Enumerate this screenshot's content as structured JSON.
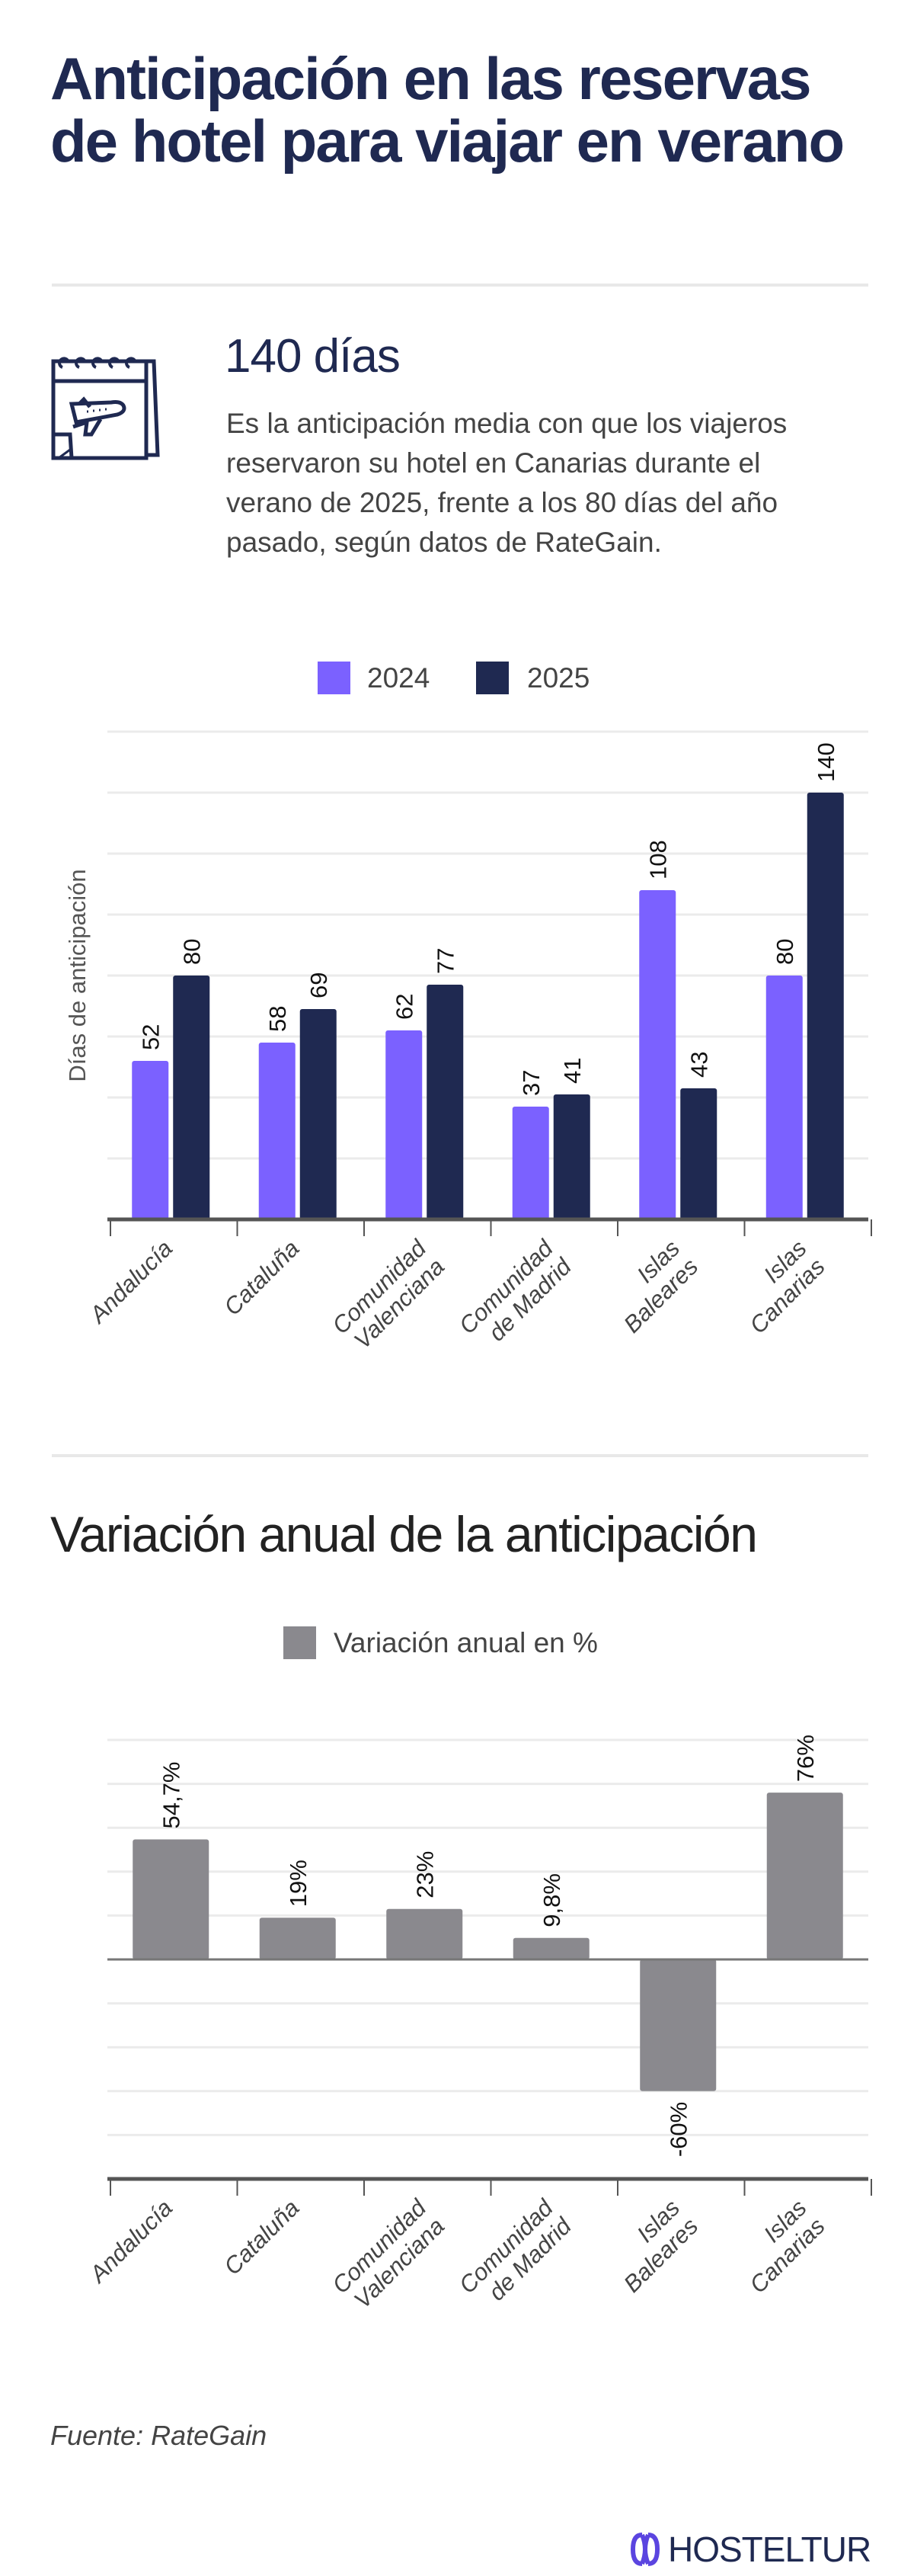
{
  "header": {
    "title": "Anticipación en las reservas de hotel para viajar en verano"
  },
  "highlight": {
    "icon": "calendar-plane-icon",
    "value": "140 días",
    "text": "Es la anticipación media con que los viajeros reservaron su hotel en Canarias durante el verano de 2025, frente a los 80 días del año pasado, según datos de RateGain."
  },
  "chart2_heading": "Variación anual de la anticipación",
  "source": "Fuente: RateGain",
  "logo": {
    "text": "HOSTELTUR"
  },
  "colors": {
    "series_2024": "#7b61ff",
    "series_2025": "#1f2951",
    "variation": "#8a898e",
    "title": "#1f2951"
  },
  "chart_data": [
    {
      "type": "bar",
      "title": "",
      "xlabel": "",
      "ylabel": "Días de anticipación",
      "ylim": [
        0,
        160
      ],
      "grid": true,
      "grid_step": 20,
      "legend_position": "top",
      "categories": [
        "Andalucía",
        "Cataluña",
        "Comunidad\nValenciana",
        "Comunidad\nde Madrid",
        "Islas\nBaleares",
        "Islas\nCanarias"
      ],
      "series": [
        {
          "name": "2024",
          "color": "#7b61ff",
          "values": [
            52,
            58,
            62,
            37,
            108,
            80
          ],
          "labels": [
            "52",
            "58",
            "62",
            "37",
            "108",
            "80"
          ]
        },
        {
          "name": "2025",
          "color": "#1f2951",
          "values": [
            80,
            69,
            77,
            41,
            43,
            140
          ],
          "labels": [
            "80",
            "69",
            "77",
            "41",
            "43",
            "140"
          ]
        }
      ]
    },
    {
      "type": "bar",
      "title": "",
      "xlabel": "",
      "ylabel": "",
      "ylim": [
        -100,
        100
      ],
      "grid": true,
      "grid_step": 20,
      "legend_position": "top",
      "categories": [
        "Andalucía",
        "Cataluña",
        "Comunidad\nValenciana",
        "Comunidad\nde Madrid",
        "Islas\nBaleares",
        "Islas\nCanarias"
      ],
      "series": [
        {
          "name": "Variación anual en %",
          "color": "#8a898e",
          "values": [
            54.7,
            19,
            23,
            9.8,
            -60,
            76
          ],
          "labels": [
            "54,7%",
            "19%",
            "23%",
            "9,8%",
            "-60%",
            "76%"
          ]
        }
      ]
    }
  ]
}
